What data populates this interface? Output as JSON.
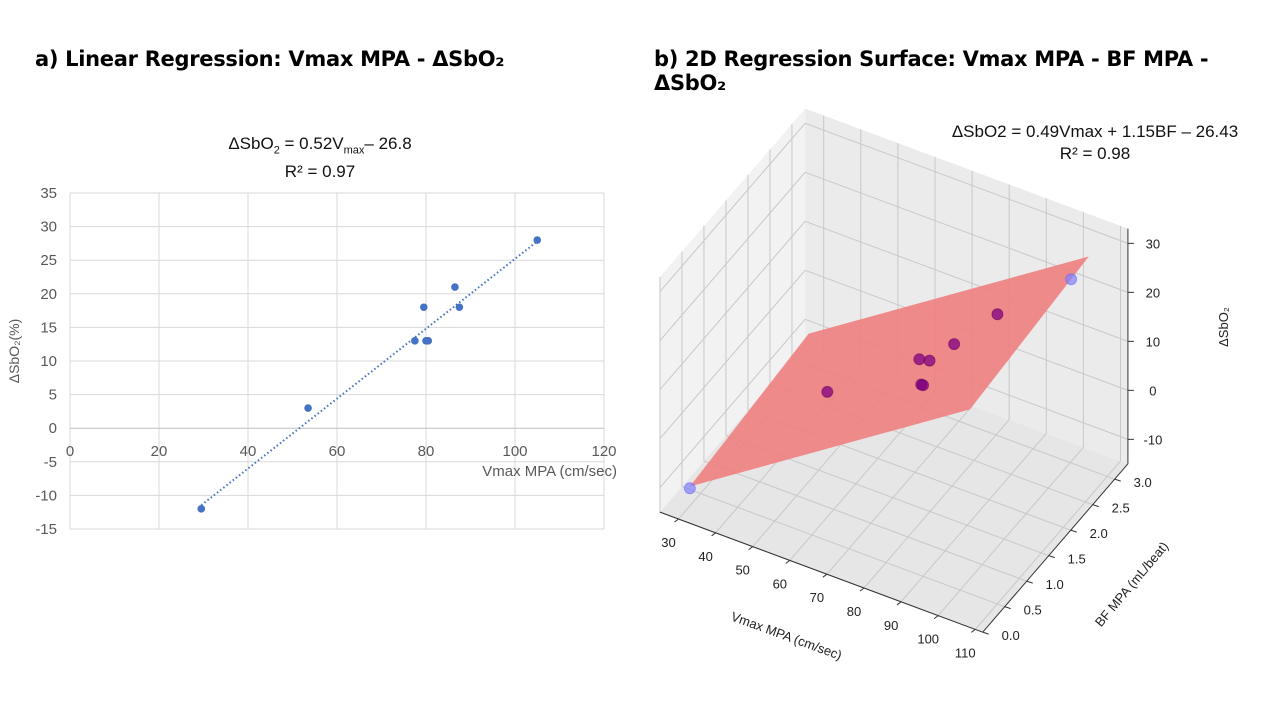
{
  "chart_data": [
    {
      "type": "scatter",
      "panel_title": "a) Linear Regression: Vmax MPA - ΔSbO₂",
      "equation": {
        "lhs": "ΔSbO",
        "lhs_sub": "2",
        "mid": " = 0.52V",
        "mid_sub": "max",
        "rhs": "– 26.8"
      },
      "r2": "R² = 0.97",
      "xlabel": "Vmax MPA (cm/sec)",
      "ylabel": "ΔSbO₂(%)",
      "xlim": [
        0,
        120
      ],
      "ylim": [
        -15,
        35
      ],
      "xticks": [
        0,
        20,
        40,
        60,
        80,
        100,
        120
      ],
      "yticks": [
        -15,
        -10,
        -5,
        0,
        5,
        10,
        15,
        20,
        25,
        30,
        35
      ],
      "grid": true,
      "trendline": {
        "slope": 0.52,
        "intercept": -26.8,
        "x_range": [
          29.5,
          105
        ],
        "style": "dotted"
      },
      "points": [
        [
          29.5,
          -12
        ],
        [
          53.5,
          3
        ],
        [
          77.5,
          13
        ],
        [
          79.5,
          18
        ],
        [
          80,
          13
        ],
        [
          80.5,
          13
        ],
        [
          86.5,
          21
        ],
        [
          87.5,
          18
        ],
        [
          105,
          28
        ]
      ],
      "color": "#4472C4"
    },
    {
      "type": "scatter3d",
      "panel_title": "b) 2D Regression Surface: Vmax MPA - BF MPA - ΔSbO₂",
      "equation": "ΔSbO2  = 0.49Vmax + 1.15BF – 26.43",
      "r2": "R² = 0.98",
      "xlabel": "Vmax MPA (cm/sec)",
      "ylabel": "BF MPA (mL/beat)",
      "zlabel": "ΔSbO₂",
      "xticks": [
        30,
        40,
        50,
        60,
        70,
        80,
        90,
        100,
        110
      ],
      "yticks": [
        "0.0",
        "0.5",
        "1.0",
        "1.5",
        "2.0",
        "2.5",
        "3.0"
      ],
      "zticks": [
        -10,
        0,
        10,
        20,
        30
      ],
      "xlim": [
        25,
        112
      ],
      "ylim": [
        0,
        3.3
      ],
      "zlim": [
        -15,
        33
      ],
      "surface": {
        "coef_vmax": 0.49,
        "coef_bf": 1.15,
        "intercept": -26.43,
        "vmax_range": [
          29.5,
          105
        ],
        "bf_range": [
          0.3,
          3.0
        ],
        "color": "#f08080"
      },
      "points": [
        [
          29.5,
          0.3,
          -12
        ],
        [
          53.5,
          1.4,
          3
        ],
        [
          80,
          1.3,
          13
        ],
        [
          80.5,
          1.3,
          13
        ],
        [
          77.5,
          1.7,
          13
        ],
        [
          79.5,
          1.3,
          18
        ],
        [
          86.5,
          1.5,
          21
        ],
        [
          87.5,
          2.4,
          18
        ],
        [
          105,
          2.6,
          28
        ]
      ],
      "point_colors": {
        "outside": "#8080ff",
        "inside": "#800080"
      }
    }
  ]
}
